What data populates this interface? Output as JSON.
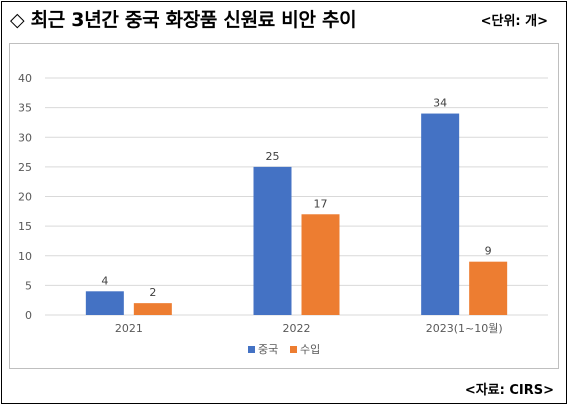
{
  "header": {
    "title": "◇ 최근 3년간 중국 화장품 신원료 비안 추이",
    "unit": "<단위: 개>"
  },
  "footer": {
    "source": "<자료: CIRS>"
  },
  "chart_data": {
    "type": "bar",
    "title": "",
    "xlabel": "",
    "ylabel": "",
    "categories": [
      "2021",
      "2022",
      "2023(1~10월)"
    ],
    "series": [
      {
        "name": "중국",
        "values": [
          4,
          25,
          34
        ],
        "color": "#4472c4"
      },
      {
        "name": "수입",
        "values": [
          2,
          17,
          9
        ],
        "color": "#ed7d31"
      }
    ],
    "ylim": [
      0,
      40
    ],
    "yticks": [
      0,
      5,
      10,
      15,
      20,
      25,
      30,
      35,
      40
    ],
    "grid": true,
    "data_labels": true,
    "legend": "bottom"
  }
}
